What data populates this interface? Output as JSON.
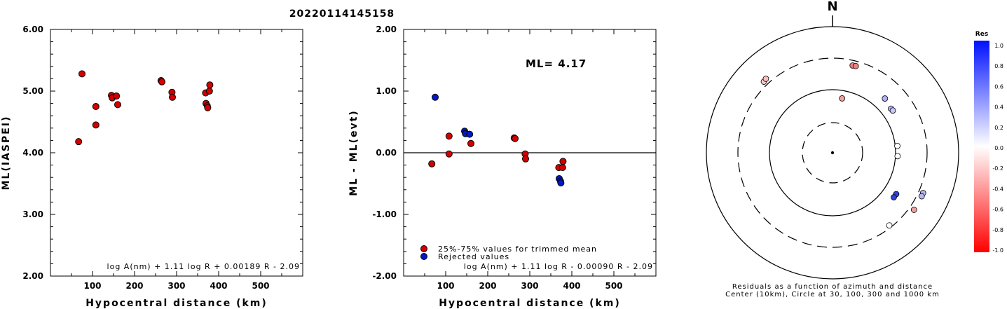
{
  "title": "20220114145158",
  "chart_data": [
    {
      "type": "scatter",
      "ylabel": "ML(IASPEI)",
      "xlabel": "Hypocentral distance (km)",
      "xlim": [
        0,
        600
      ],
      "ylim": [
        2.0,
        6.0
      ],
      "xticks": [
        "100",
        "200",
        "300",
        "400",
        "500"
      ],
      "yticks": [
        "2.00",
        "3.00",
        "4.00",
        "5.00",
        "6.00"
      ],
      "formula": "log A(nm) + 1.11 log R + 0.00189 R - 2.09",
      "points": [
        {
          "x": 67,
          "y": 4.18,
          "c": "#d40000"
        },
        {
          "x": 75,
          "y": 5.28,
          "c": "#d40000"
        },
        {
          "x": 108,
          "y": 4.75,
          "c": "#d40000"
        },
        {
          "x": 108,
          "y": 4.45,
          "c": "#d40000"
        },
        {
          "x": 145,
          "y": 4.93,
          "c": "#d40000"
        },
        {
          "x": 147,
          "y": 4.89,
          "c": "#d40000"
        },
        {
          "x": 157,
          "y": 4.92,
          "c": "#d40000"
        },
        {
          "x": 160,
          "y": 4.78,
          "c": "#d40000"
        },
        {
          "x": 263,
          "y": 5.17,
          "c": "#d40000"
        },
        {
          "x": 265,
          "y": 5.15,
          "c": "#d40000"
        },
        {
          "x": 289,
          "y": 4.98,
          "c": "#d40000"
        },
        {
          "x": 290,
          "y": 4.9,
          "c": "#d40000"
        },
        {
          "x": 369,
          "y": 4.97,
          "c": "#d40000"
        },
        {
          "x": 370,
          "y": 4.8,
          "c": "#d40000"
        },
        {
          "x": 373,
          "y": 4.76,
          "c": "#d40000"
        },
        {
          "x": 374,
          "y": 4.73,
          "c": "#d40000"
        },
        {
          "x": 378,
          "y": 5.0,
          "c": "#d40000"
        },
        {
          "x": 379,
          "y": 5.1,
          "c": "#d40000"
        }
      ]
    },
    {
      "type": "scatter",
      "ylabel": "ML - ML(evt)",
      "xlabel": "Hypocentral distance (km)",
      "xlim": [
        0,
        600
      ],
      "ylim": [
        -2.0,
        2.0
      ],
      "xticks": [
        "100",
        "200",
        "300",
        "400",
        "500"
      ],
      "yticks": [
        "-2.00",
        "-1.00",
        "0.00",
        "1.00",
        "2.00"
      ],
      "ml_text": "ML= 4.17",
      "formula": "log A(nm) + 1.11 log R - 0.00090 R - 2.09",
      "legend": [
        {
          "label": "25%-75% values for trimmed mean",
          "c": "#d40000"
        },
        {
          "label": "Rejected values",
          "c": "#0018c8"
        }
      ],
      "points": [
        {
          "x": 67,
          "y": -0.18,
          "c": "#d40000"
        },
        {
          "x": 75,
          "y": 0.9,
          "c": "#0018c8"
        },
        {
          "x": 108,
          "y": 0.27,
          "c": "#d40000"
        },
        {
          "x": 108,
          "y": -0.02,
          "c": "#d40000"
        },
        {
          "x": 145,
          "y": 0.35,
          "c": "#0018c8"
        },
        {
          "x": 147,
          "y": 0.31,
          "c": "#0018c8"
        },
        {
          "x": 157,
          "y": 0.3,
          "c": "#0018c8"
        },
        {
          "x": 160,
          "y": 0.15,
          "c": "#d40000"
        },
        {
          "x": 263,
          "y": 0.24,
          "c": "#d40000"
        },
        {
          "x": 265,
          "y": 0.23,
          "c": "#d40000"
        },
        {
          "x": 289,
          "y": -0.02,
          "c": "#d40000"
        },
        {
          "x": 290,
          "y": -0.1,
          "c": "#d40000"
        },
        {
          "x": 369,
          "y": -0.24,
          "c": "#d40000"
        },
        {
          "x": 370,
          "y": -0.42,
          "c": "#0018c8"
        },
        {
          "x": 373,
          "y": -0.46,
          "c": "#0018c8"
        },
        {
          "x": 374,
          "y": -0.49,
          "c": "#0018c8"
        },
        {
          "x": 378,
          "y": -0.24,
          "c": "#d40000"
        },
        {
          "x": 379,
          "y": -0.14,
          "c": "#d40000"
        }
      ]
    },
    {
      "type": "scatter",
      "subtype": "polar-residuals",
      "north_label": "N",
      "caption1": "Residuals as a function of azimuth and distance",
      "caption2": "Center (10km), Circle at 30, 100, 300 and 1000 km",
      "colorbar_title": "Res",
      "colorbar_ticks": [
        "1.0",
        "0.8",
        "0.6",
        "0.4",
        "0.2",
        "0.0",
        "-0.2",
        "-0.4",
        "-0.6",
        "-0.8",
        "-1.0"
      ],
      "points": [
        {
          "az": 13,
          "dist": 263,
          "c": "#f08080"
        },
        {
          "az": 15,
          "dist": 265,
          "c": "#f08080"
        },
        {
          "az": 44,
          "dist": 157,
          "c": "#b0b0f8"
        },
        {
          "az": 53,
          "dist": 145,
          "c": "#b8b8f8"
        },
        {
          "az": 55,
          "dist": 147,
          "c": "#c8c8f8"
        },
        {
          "az": 84,
          "dist": 108,
          "c": "#ffffff"
        },
        {
          "az": 93,
          "dist": 108,
          "c": "#ffffff"
        },
        {
          "az": 123,
          "dist": 160,
          "c": "#3040e0"
        },
        {
          "az": 126,
          "dist": 159,
          "c": "#3040e0"
        },
        {
          "az": 114,
          "dist": 373,
          "c": "#b8b8f0"
        },
        {
          "az": 116,
          "dist": 374,
          "c": "#b8b8f0"
        },
        {
          "az": 125,
          "dist": 378,
          "c": "#f0a0a0"
        },
        {
          "az": 142,
          "dist": 290,
          "c": "#ffffff"
        },
        {
          "az": 316,
          "dist": 369,
          "c": "#f8c8c8"
        },
        {
          "az": 318,
          "dist": 379,
          "c": "#f8c0c0"
        },
        {
          "az": 10,
          "dist": 75,
          "c": "#f0a0a0"
        }
      ]
    }
  ]
}
